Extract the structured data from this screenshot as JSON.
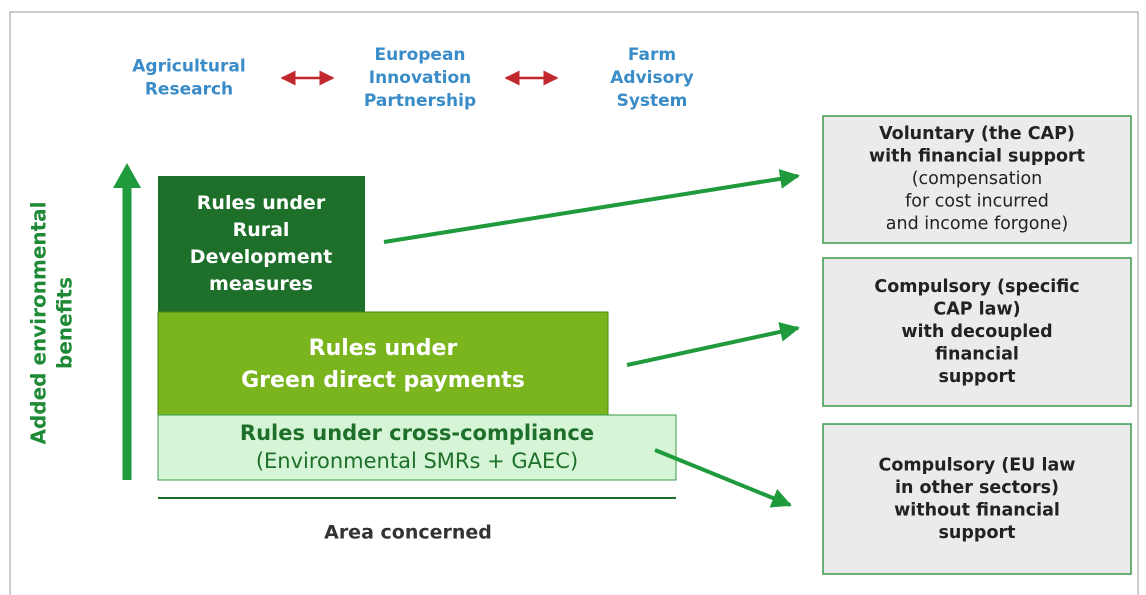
{
  "top_labels": [
    [
      "Agricultural",
      "Research"
    ],
    [
      "European",
      "Innovation",
      "Partnership"
    ],
    [
      "Farm",
      "Advisory",
      "System"
    ]
  ],
  "axis_label": [
    "Added environmental",
    "benefits"
  ],
  "levels": [
    {
      "lines": [
        "Rules under",
        "Rural",
        "Development",
        "measures"
      ]
    },
    {
      "lines": [
        "Rules under",
        "Green direct payments"
      ]
    },
    {
      "heading": "Rules under cross-compliance",
      "lines": [
        "(Environmental SMRs + GAEC)"
      ]
    }
  ],
  "x_axis_label": "Area concerned",
  "outcomes": [
    {
      "heading": [
        "Voluntary (the CAP)",
        "with financial support"
      ],
      "lines": [
        "(compensation",
        "for cost incurred",
        "and income forgone)"
      ]
    },
    {
      "heading": [
        "Compulsory (specific",
        "CAP law)",
        "with decoupled",
        "financial",
        "support"
      ]
    },
    {
      "heading": [
        "Compulsory (EU law",
        "in other sectors)",
        "without financial",
        "support"
      ]
    }
  ]
}
